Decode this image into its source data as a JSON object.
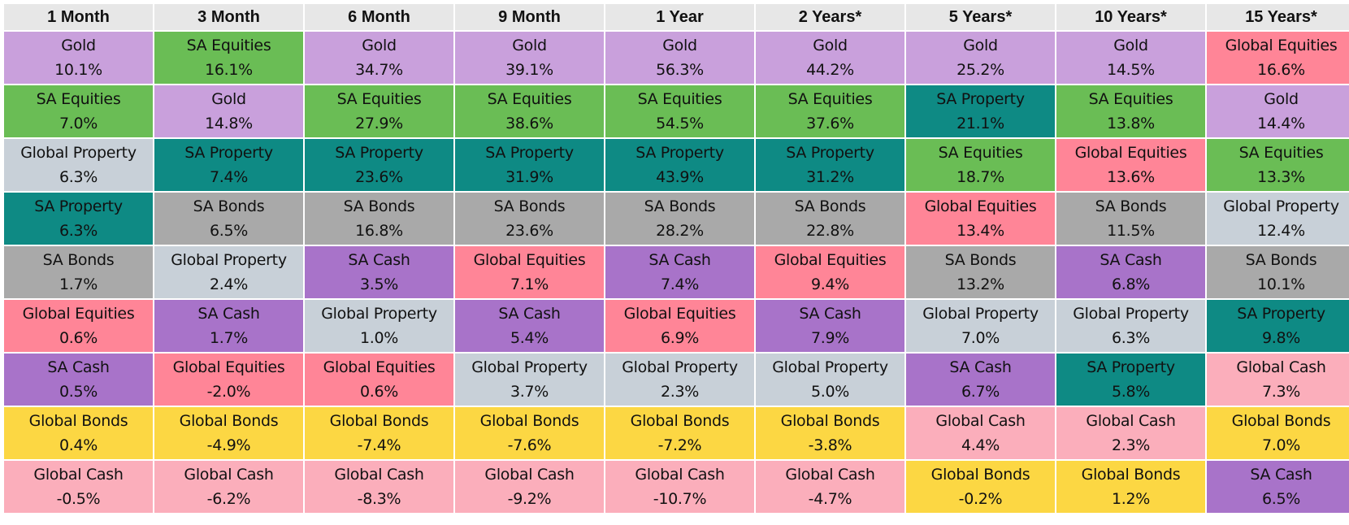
{
  "colors": {
    "Gold": "#c9a0dc",
    "SA Equities": "#6abd55",
    "SA Property": "#0e8a84",
    "SA Bonds": "#a9a9a9",
    "SA Cash": "#a873c9",
    "Global Property": "#c8d0d8",
    "Global Equities": "#ff8597",
    "Global Bonds": "#fcd743",
    "Global Cash": "#fbaebb"
  },
  "chart_data": {
    "type": "table",
    "columns": [
      "1 Month",
      "3 Month",
      "6 Month",
      "9 Month",
      "1 Year",
      "2 Years*",
      "5 Years*",
      "10 Years*",
      "15 Years*"
    ],
    "rankings": [
      [
        [
          "Gold",
          "10.1%"
        ],
        [
          "SA Equities",
          "7.0%"
        ],
        [
          "Global Property",
          "6.3%"
        ],
        [
          "SA Property",
          "6.3%"
        ],
        [
          "SA Bonds",
          "1.7%"
        ],
        [
          "Global Equities",
          "0.6%"
        ],
        [
          "SA Cash",
          "0.5%"
        ],
        [
          "Global Bonds",
          "0.4%"
        ],
        [
          "Global Cash",
          "-0.5%"
        ]
      ],
      [
        [
          "SA Equities",
          "16.1%"
        ],
        [
          "Gold",
          "14.8%"
        ],
        [
          "SA Property",
          "7.4%"
        ],
        [
          "SA Bonds",
          "6.5%"
        ],
        [
          "Global Property",
          "2.4%"
        ],
        [
          "SA Cash",
          "1.7%"
        ],
        [
          "Global Equities",
          "-2.0%"
        ],
        [
          "Global Bonds",
          "-4.9%"
        ],
        [
          "Global Cash",
          "-6.2%"
        ]
      ],
      [
        [
          "Gold",
          "34.7%"
        ],
        [
          "SA Equities",
          "27.9%"
        ],
        [
          "SA Property",
          "23.6%"
        ],
        [
          "SA Bonds",
          "16.8%"
        ],
        [
          "SA Cash",
          "3.5%"
        ],
        [
          "Global Property",
          "1.0%"
        ],
        [
          "Global Equities",
          "0.6%"
        ],
        [
          "Global Bonds",
          "-7.4%"
        ],
        [
          "Global Cash",
          "-8.3%"
        ]
      ],
      [
        [
          "Gold",
          "39.1%"
        ],
        [
          "SA Equities",
          "38.6%"
        ],
        [
          "SA Property",
          "31.9%"
        ],
        [
          "SA Bonds",
          "23.6%"
        ],
        [
          "Global Equities",
          "7.1%"
        ],
        [
          "SA Cash",
          "5.4%"
        ],
        [
          "Global Property",
          "3.7%"
        ],
        [
          "Global Bonds",
          "-7.6%"
        ],
        [
          "Global Cash",
          "-9.2%"
        ]
      ],
      [
        [
          "Gold",
          "56.3%"
        ],
        [
          "SA Equities",
          "54.5%"
        ],
        [
          "SA Property",
          "43.9%"
        ],
        [
          "SA Bonds",
          "28.2%"
        ],
        [
          "SA Cash",
          "7.4%"
        ],
        [
          "Global Equities",
          "6.9%"
        ],
        [
          "Global Property",
          "2.3%"
        ],
        [
          "Global Bonds",
          "-7.2%"
        ],
        [
          "Global Cash",
          "-10.7%"
        ]
      ],
      [
        [
          "Gold",
          "44.2%"
        ],
        [
          "SA Equities",
          "37.6%"
        ],
        [
          "SA Property",
          "31.2%"
        ],
        [
          "SA Bonds",
          "22.8%"
        ],
        [
          "Global Equities",
          "9.4%"
        ],
        [
          "SA Cash",
          "7.9%"
        ],
        [
          "Global Property",
          "5.0%"
        ],
        [
          "Global Bonds",
          "-3.8%"
        ],
        [
          "Global Cash",
          "-4.7%"
        ]
      ],
      [
        [
          "Gold",
          "25.2%"
        ],
        [
          "SA Property",
          "21.1%"
        ],
        [
          "SA Equities",
          "18.7%"
        ],
        [
          "Global Equities",
          "13.4%"
        ],
        [
          "SA Bonds",
          "13.2%"
        ],
        [
          "Global Property",
          "7.0%"
        ],
        [
          "SA Cash",
          "6.7%"
        ],
        [
          "Global Cash",
          "4.4%"
        ],
        [
          "Global Bonds",
          "-0.2%"
        ]
      ],
      [
        [
          "Gold",
          "14.5%"
        ],
        [
          "SA Equities",
          "13.8%"
        ],
        [
          "Global Equities",
          "13.6%"
        ],
        [
          "SA Bonds",
          "11.5%"
        ],
        [
          "SA Cash",
          "6.8%"
        ],
        [
          "Global Property",
          "6.3%"
        ],
        [
          "SA Property",
          "5.8%"
        ],
        [
          "Global Cash",
          "2.3%"
        ],
        [
          "Global Bonds",
          "1.2%"
        ]
      ],
      [
        [
          "Global Equities",
          "16.6%"
        ],
        [
          "Gold",
          "14.4%"
        ],
        [
          "SA Equities",
          "13.3%"
        ],
        [
          "Global Property",
          "12.4%"
        ],
        [
          "SA Bonds",
          "10.1%"
        ],
        [
          "SA Property",
          "9.8%"
        ],
        [
          "Global Cash",
          "7.3%"
        ],
        [
          "Global Bonds",
          "7.0%"
        ],
        [
          "SA Cash",
          "6.5%"
        ]
      ]
    ]
  }
}
